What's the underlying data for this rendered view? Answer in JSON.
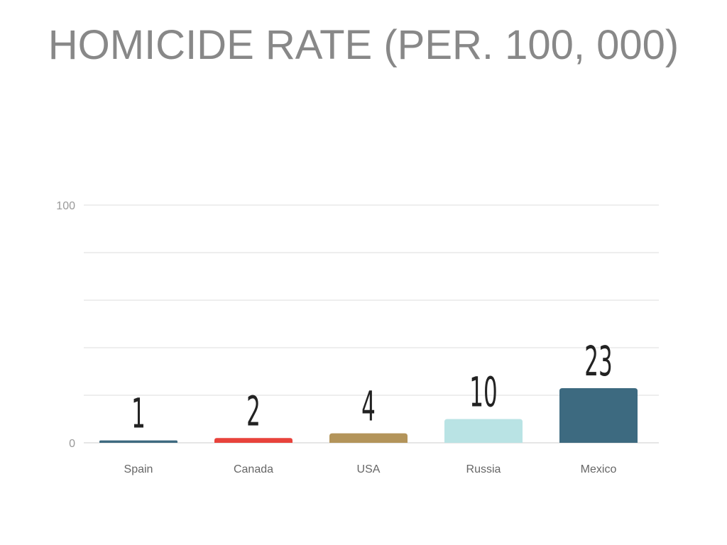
{
  "title": "HOMICIDE RATE (PER. 100, 000)",
  "chart_data": {
    "type": "bar",
    "title": "HOMICIDE RATE (PER. 100, 000)",
    "xlabel": "",
    "ylabel": "",
    "categories": [
      "Spain",
      "Canada",
      "USA",
      "Russia",
      "Mexico"
    ],
    "values": [
      1,
      2,
      4,
      10,
      23
    ],
    "value_labels": [
      "1",
      "2",
      "4",
      "10",
      "23"
    ],
    "bar_colors": [
      "#3d6a80",
      "#e8423b",
      "#b3945a",
      "#b9e3e4",
      "#3d6a80"
    ],
    "ylim": [
      0,
      100
    ],
    "y_tick_labels": [
      "0",
      "100"
    ],
    "grid": true,
    "gridline_count": 5,
    "legend": "none"
  }
}
